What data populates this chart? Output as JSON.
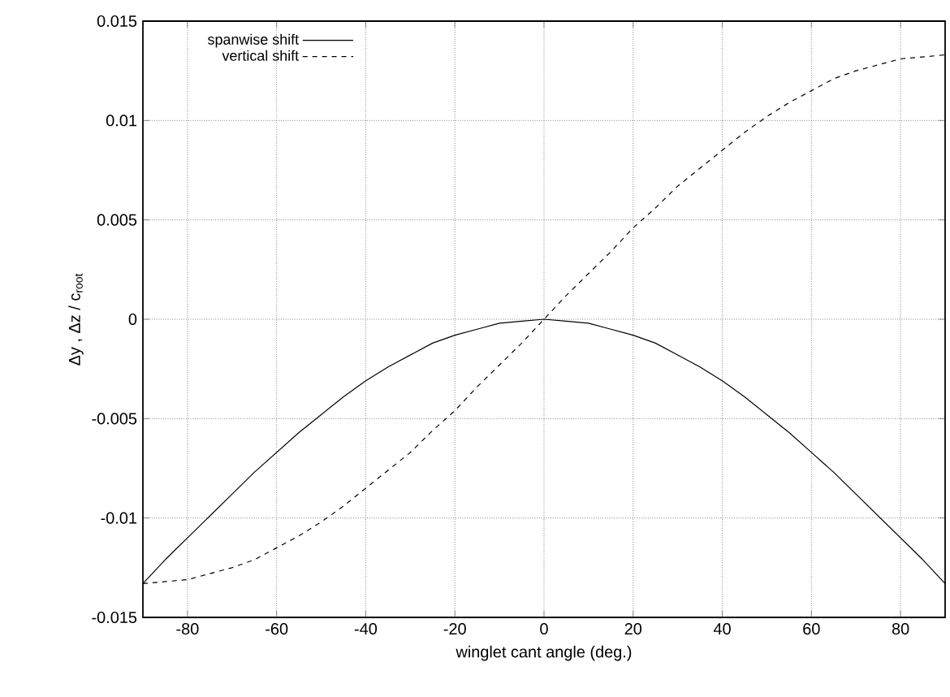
{
  "chart_data": {
    "type": "line",
    "xlabel": "winglet cant angle (deg.)",
    "ylabel": "Δy , Δz / c$_{root}$",
    "x": [
      -90,
      -85,
      -80,
      -75,
      -70,
      -65,
      -60,
      -55,
      -50,
      -45,
      -40,
      -35,
      -30,
      -25,
      -20,
      -15,
      -10,
      -5,
      0,
      5,
      10,
      15,
      20,
      25,
      30,
      35,
      40,
      45,
      50,
      55,
      60,
      65,
      70,
      75,
      80,
      85,
      90
    ],
    "series": [
      {
        "name": "spanwise shift",
        "color": "#000000",
        "line_style": "solid",
        "values": [
          -0.0133,
          -0.0121,
          -0.011,
          -0.0099,
          -0.0088,
          -0.0077,
          -0.0067,
          -0.0057,
          -0.0048,
          -0.0039,
          -0.0031,
          -0.0024,
          -0.0018,
          -0.0012,
          -0.0008,
          -0.0005,
          -0.0002,
          -0.0001,
          0,
          -0.0001,
          -0.0002,
          -0.0005,
          -0.0008,
          -0.0012,
          -0.0018,
          -0.0024,
          -0.0031,
          -0.0039,
          -0.0048,
          -0.0057,
          -0.0067,
          -0.0077,
          -0.0088,
          -0.0099,
          -0.011,
          -0.0121,
          -0.0133
        ]
      },
      {
        "name": "vertical shift",
        "color": "#000000",
        "line_style": "dashed",
        "values": [
          -0.0133,
          -0.0132,
          -0.0131,
          -0.0128,
          -0.0125,
          -0.0121,
          -0.0115,
          -0.0109,
          -0.0102,
          -0.0094,
          -0.0085,
          -0.0076,
          -0.0067,
          -0.0056,
          -0.0046,
          -0.0034,
          -0.0023,
          -0.0012,
          0,
          0.0012,
          0.0023,
          0.0034,
          0.0046,
          0.0056,
          0.0067,
          0.0076,
          0.0085,
          0.0094,
          0.0102,
          0.0109,
          0.0115,
          0.0121,
          0.0125,
          0.0128,
          0.0131,
          0.0132,
          0.0133
        ]
      }
    ],
    "xlim": [
      -90,
      90
    ],
    "xticks": [
      -80,
      -60,
      -40,
      -20,
      0,
      20,
      40,
      60,
      80
    ],
    "ylim": [
      -0.015,
      0.015
    ],
    "yticks": [
      -0.015,
      -0.01,
      -0.005,
      0,
      0.005,
      0.01,
      0.015
    ],
    "grid": true,
    "legend": "top left",
    "marker": "none"
  }
}
